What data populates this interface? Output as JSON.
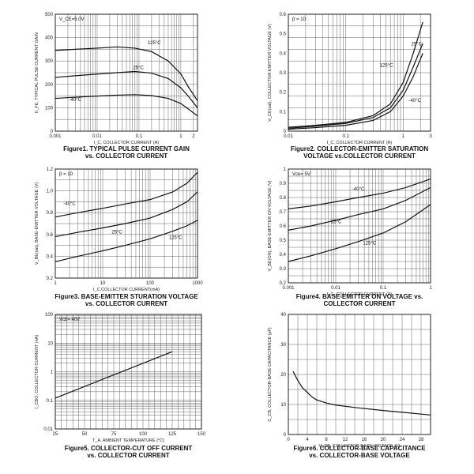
{
  "chart_data": [
    {
      "id": "fig1",
      "type": "line",
      "caption_lines": [
        "Figure1. TYPICAL PULSE CURRENT GAIN",
        "vs. COLLECTOR CURRENT"
      ],
      "xlabel": "I_C, COLLECTOR CURRENT (A)",
      "ylabel": "h_FE, TYPICAL PULSE CURRENT GAIN",
      "xscale": "log",
      "xlim": [
        0.001,
        2.5
      ],
      "yscale": "linear",
      "ylim": [
        0,
        500
      ],
      "xticks": [
        {
          "v": 0.001,
          "t": "0.001"
        },
        {
          "v": 0.01,
          "t": "0.01"
        },
        {
          "v": 0.1,
          "t": "0.1"
        },
        {
          "v": 1,
          "t": "1"
        },
        {
          "v": 2,
          "t": "2"
        }
      ],
      "yticks": [
        {
          "v": 0,
          "t": "0"
        },
        {
          "v": 100,
          "t": "100"
        },
        {
          "v": 200,
          "t": "200"
        },
        {
          "v": 300,
          "t": "300"
        },
        {
          "v": 400,
          "t": "400"
        },
        {
          "v": 500,
          "t": "500"
        }
      ],
      "note": "V_CE=5.0V",
      "series": [
        {
          "name": "125°C",
          "x": [
            0.001,
            0.003,
            0.01,
            0.03,
            0.08,
            0.2,
            0.5,
            1,
            1.5,
            2.5
          ],
          "y": [
            345,
            350,
            355,
            360,
            355,
            340,
            300,
            245,
            190,
            130
          ]
        },
        {
          "name": "25°C",
          "x": [
            0.001,
            0.003,
            0.01,
            0.03,
            0.08,
            0.2,
            0.5,
            1,
            1.5,
            2.5
          ],
          "y": [
            230,
            237,
            244,
            250,
            255,
            248,
            225,
            185,
            150,
            100
          ]
        },
        {
          "name": "-40°C",
          "x": [
            0.001,
            0.003,
            0.01,
            0.03,
            0.08,
            0.2,
            0.5,
            1,
            1.5,
            2.5
          ],
          "y": [
            140,
            145,
            150,
            154,
            156,
            152,
            140,
            118,
            95,
            65
          ]
        }
      ]
    },
    {
      "id": "fig2",
      "type": "line",
      "caption_lines": [
        "Figure2. COLLECTOR-EMITTER SATURATION",
        "VOLTAGE vs.COLLECTOR CURRENT"
      ],
      "xlabel": "I_C, COLLECTOR CURRENT (A)",
      "ylabel": "V_CE(sat), COLLECTOR-EMITTER VOLTAGE (V)",
      "xscale": "log",
      "xlim": [
        0.01,
        3
      ],
      "yscale": "linear",
      "ylim": [
        0,
        0.6
      ],
      "xticks": [
        {
          "v": 0.01,
          "t": "0.01"
        },
        {
          "v": 0.1,
          "t": "0.1"
        },
        {
          "v": 1,
          "t": "1"
        },
        {
          "v": 3,
          "t": "3"
        }
      ],
      "yticks": [
        {
          "v": 0,
          "t": "0"
        },
        {
          "v": 0.1,
          "t": "0.1"
        },
        {
          "v": 0.2,
          "t": "0.2"
        },
        {
          "v": 0.3,
          "t": "0.3"
        },
        {
          "v": 0.4,
          "t": "0.4"
        },
        {
          "v": 0.5,
          "t": "0.5"
        },
        {
          "v": 0.6,
          "t": "0.6"
        }
      ],
      "note": "β = 10",
      "series": [
        {
          "name": "25°C",
          "x": [
            0.01,
            0.03,
            0.1,
            0.3,
            0.6,
            1,
            1.5,
            2.2
          ],
          "y": [
            0.02,
            0.03,
            0.045,
            0.08,
            0.14,
            0.25,
            0.4,
            0.56
          ]
        },
        {
          "name": "125°C",
          "x": [
            0.01,
            0.03,
            0.1,
            0.3,
            0.6,
            1,
            1.5,
            2.2
          ],
          "y": [
            0.015,
            0.025,
            0.04,
            0.07,
            0.12,
            0.21,
            0.33,
            0.45
          ]
        },
        {
          "name": "-40°C",
          "x": [
            0.01,
            0.03,
            0.1,
            0.3,
            0.6,
            1,
            1.5,
            2.2
          ],
          "y": [
            0.01,
            0.018,
            0.03,
            0.055,
            0.1,
            0.18,
            0.28,
            0.4
          ]
        }
      ]
    },
    {
      "id": "fig3",
      "type": "line",
      "caption_lines": [
        "Figure3. BASE-EMITTER STURATION VOLTAGE",
        "vs. COLLECTOR CURRENT"
      ],
      "xlabel": "I_C,COLLECTOR CURRENT(mA)",
      "ylabel": "V_BE(sat), BASE-EMITTER VOLTAGE (V)",
      "xscale": "log",
      "xlim": [
        1,
        1000
      ],
      "yscale": "linear",
      "ylim": [
        0.2,
        1.2
      ],
      "xticks": [
        {
          "v": 1,
          "t": "1"
        },
        {
          "v": 10,
          "t": "10"
        },
        {
          "v": 100,
          "t": "100"
        },
        {
          "v": 1000,
          "t": "1000"
        }
      ],
      "yticks": [
        {
          "v": 0.2,
          "t": "0.2"
        },
        {
          "v": 0.4,
          "t": "0.4"
        },
        {
          "v": 0.6,
          "t": "0.6"
        },
        {
          "v": 0.8,
          "t": "0.8"
        },
        {
          "v": 1.0,
          "t": "1.0"
        },
        {
          "v": 1.2,
          "t": "1.2"
        }
      ],
      "note": "β = 10",
      "series": [
        {
          "name": "-40°C",
          "x": [
            1,
            3,
            10,
            30,
            100,
            300,
            600,
            1000
          ],
          "y": [
            0.76,
            0.8,
            0.84,
            0.88,
            0.92,
            0.99,
            1.07,
            1.17
          ]
        },
        {
          "name": "25°C",
          "x": [
            1,
            3,
            10,
            30,
            100,
            300,
            600,
            1000
          ],
          "y": [
            0.58,
            0.62,
            0.66,
            0.7,
            0.75,
            0.83,
            0.9,
            0.99
          ]
        },
        {
          "name": "125°C",
          "x": [
            1,
            3,
            10,
            30,
            100,
            300,
            600,
            1000
          ],
          "y": [
            0.35,
            0.4,
            0.45,
            0.5,
            0.56,
            0.63,
            0.68,
            0.73
          ]
        }
      ]
    },
    {
      "id": "fig4",
      "type": "line",
      "caption_lines": [
        "Figure4. BASE-EMITTER ON VOLTAGE vs.",
        "COLLECTOR CURRENT"
      ],
      "xlabel": "I_C, COLLECTOR CURRENT (A)",
      "ylabel": "V_BE(ON), BASE-EMITTER ON VOLTAGE (V)",
      "xscale": "log",
      "xlim": [
        0.001,
        1
      ],
      "yscale": "linear",
      "ylim": [
        0.2,
        1.0
      ],
      "xticks": [
        {
          "v": 0.001,
          "t": "0.001"
        },
        {
          "v": 0.01,
          "t": "0.01"
        },
        {
          "v": 0.1,
          "t": "0.1"
        },
        {
          "v": 1,
          "t": "1"
        }
      ],
      "yticks": [
        {
          "v": 0.2,
          "t": "0.2"
        },
        {
          "v": 0.3,
          "t": "0.3"
        },
        {
          "v": 0.4,
          "t": "0.4"
        },
        {
          "v": 0.5,
          "t": "0.5"
        },
        {
          "v": 0.6,
          "t": "0.6"
        },
        {
          "v": 0.7,
          "t": "0.7"
        },
        {
          "v": 0.8,
          "t": "0.8"
        },
        {
          "v": 0.9,
          "t": "0.9"
        },
        {
          "v": 1.0,
          "t": "1"
        }
      ],
      "note": "Vce= 5V",
      "series": [
        {
          "name": "-40°C",
          "x": [
            0.001,
            0.003,
            0.01,
            0.03,
            0.1,
            0.3,
            1
          ],
          "y": [
            0.72,
            0.74,
            0.77,
            0.8,
            0.83,
            0.87,
            0.93
          ]
        },
        {
          "name": "25°C",
          "x": [
            0.001,
            0.003,
            0.01,
            0.03,
            0.1,
            0.3,
            1
          ],
          "y": [
            0.57,
            0.6,
            0.64,
            0.68,
            0.72,
            0.78,
            0.87
          ]
        },
        {
          "name": "125°C",
          "x": [
            0.001,
            0.003,
            0.01,
            0.03,
            0.1,
            0.3,
            1
          ],
          "y": [
            0.35,
            0.39,
            0.44,
            0.49,
            0.55,
            0.63,
            0.75
          ]
        }
      ]
    },
    {
      "id": "fig5",
      "type": "line",
      "caption_lines": [
        "Figure5. COLLECTOR-CUT OFF CURRENT",
        "vs. COLLECTOR CURRENT"
      ],
      "xlabel": "T_A, AMBIENT TEMPERATURE (°C)",
      "ylabel": "I_CBO, COLLECTOR CURRENT (nA)",
      "xscale": "linear",
      "xlim": [
        25,
        150
      ],
      "yscale": "log",
      "ylim": [
        0.01,
        100
      ],
      "xticks": [
        {
          "v": 25,
          "t": "25"
        },
        {
          "v": 50,
          "t": "50"
        },
        {
          "v": 75,
          "t": "75"
        },
        {
          "v": 100,
          "t": "100"
        },
        {
          "v": 125,
          "t": "125"
        },
        {
          "v": 150,
          "t": "150"
        }
      ],
      "yticks": [
        {
          "v": 0.01,
          "t": "0.01"
        },
        {
          "v": 0.1,
          "t": "0.1"
        },
        {
          "v": 1,
          "t": "1"
        },
        {
          "v": 10,
          "t": "10"
        },
        {
          "v": 100,
          "t": "100"
        }
      ],
      "note": "Vcb= 40V",
      "series": [
        {
          "name": "Icbo",
          "x": [
            25,
            125
          ],
          "y": [
            0.12,
            5
          ]
        }
      ]
    },
    {
      "id": "fig6",
      "type": "line",
      "caption_lines": [
        "Figure6. COLLECTOR-BASE CAPACITANCE",
        "vs. COLLECTOR-BASE VOLTAGE"
      ],
      "xlabel": "V_CB, COLLECTOR-BASE VOLTAGE (V)",
      "ylabel": "C_CB, COLLECTOR-BASE CAPACITANCE (pF)",
      "xscale": "linear",
      "xlim": [
        0,
        30
      ],
      "yscale": "linear",
      "ylim": [
        0,
        40
      ],
      "xticks": [
        {
          "v": 0,
          "t": "0"
        },
        {
          "v": 4,
          "t": "4"
        },
        {
          "v": 8,
          "t": "8"
        },
        {
          "v": 12,
          "t": "12"
        },
        {
          "v": 16,
          "t": "16"
        },
        {
          "v": 20,
          "t": "20"
        },
        {
          "v": 24,
          "t": "24"
        },
        {
          "v": 28,
          "t": "28"
        }
      ],
      "yticks": [
        {
          "v": 0,
          "t": "0"
        },
        {
          "v": 10,
          "t": "10"
        },
        {
          "v": 20,
          "t": "20"
        },
        {
          "v": 30,
          "t": "30"
        },
        {
          "v": 40,
          "t": "40"
        }
      ],
      "note": "",
      "series": [
        {
          "name": "Ccb",
          "x": [
            1,
            2,
            3,
            4,
            5,
            6,
            8,
            10,
            14,
            20,
            30
          ],
          "y": [
            21,
            18,
            15.5,
            14,
            12.5,
            11.5,
            10.5,
            9.8,
            9,
            8,
            6.5
          ]
        }
      ]
    }
  ]
}
